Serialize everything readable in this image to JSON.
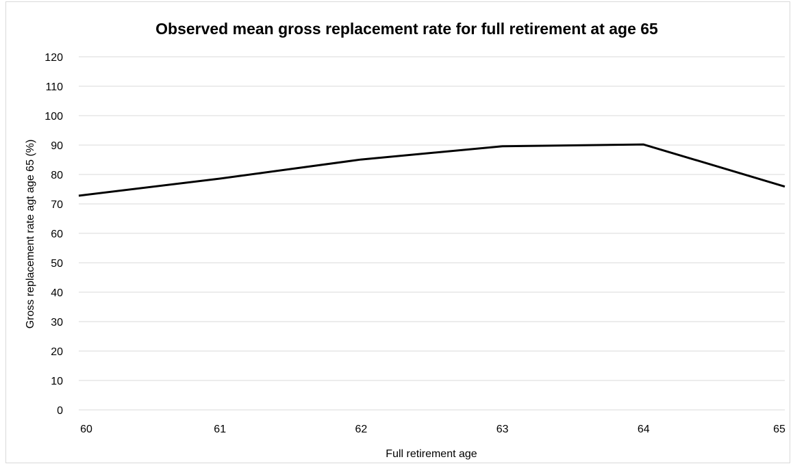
{
  "chart_data": {
    "type": "line",
    "title": "Observed mean gross replacement rate for full retirement at age 65",
    "xlabel": "Full retirement age",
    "ylabel": "Gross replacement rate agt age 65 (%)",
    "categories": [
      "60",
      "61",
      "62",
      "63",
      "64",
      "65"
    ],
    "series": [
      {
        "values": [
          72.8,
          78.6,
          85.1,
          89.6,
          90.2,
          75.9
        ]
      }
    ],
    "yticks": [
      0,
      10,
      20,
      30,
      40,
      50,
      60,
      70,
      80,
      90,
      100,
      110,
      120
    ],
    "ylim": [
      0,
      120
    ],
    "grid": true,
    "legend": "none",
    "colors": {
      "line": "#000000",
      "grid": "#d9d9d9",
      "frame": "#d9d9d9"
    }
  }
}
